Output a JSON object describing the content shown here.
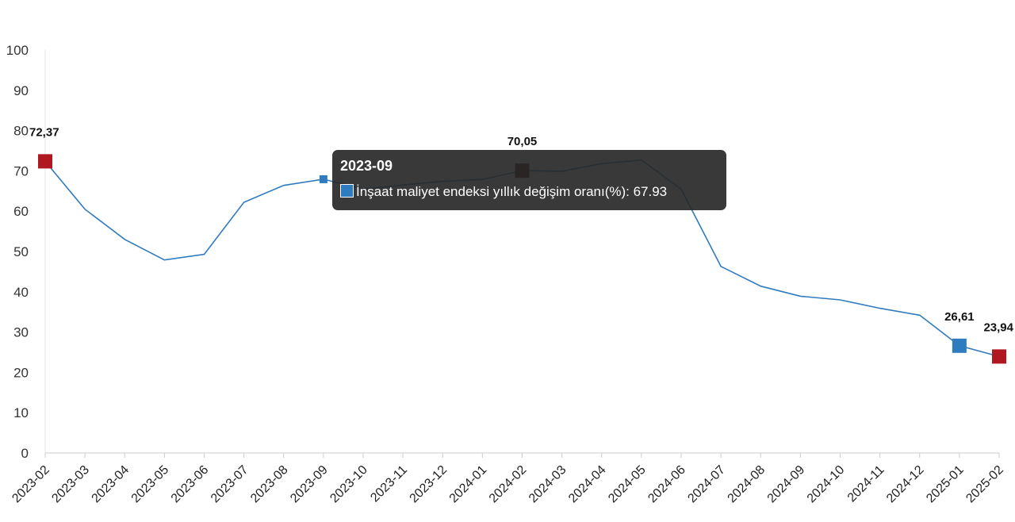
{
  "chart_data": {
    "type": "line",
    "series": [
      {
        "name": "İnşaat maliyet endeksi yıllık değişim oranı(%)",
        "color": "#2f7bbf",
        "x": [
          "2023-02",
          "2023-03",
          "2023-04",
          "2023-05",
          "2023-06",
          "2023-07",
          "2023-08",
          "2023-09",
          "2023-10",
          "2023-11",
          "2023-12",
          "2024-01",
          "2024-02",
          "2024-03",
          "2024-04",
          "2024-05",
          "2024-06",
          "2024-07",
          "2024-08",
          "2024-09",
          "2024-10",
          "2024-11",
          "2024-12",
          "2025-01",
          "2025-02"
        ],
        "values": [
          72.37,
          60.5,
          53.0,
          47.9,
          49.3,
          62.2,
          66.4,
          67.93,
          65.5,
          66.5,
          67.4,
          67.9,
          70.05,
          69.9,
          71.8,
          72.7,
          65.5,
          46.3,
          41.4,
          38.9,
          38.0,
          35.9,
          34.2,
          26.61,
          23.94
        ]
      }
    ],
    "ylim": [
      0,
      100
    ],
    "yticks": [
      "0",
      "10",
      "20",
      "30",
      "40",
      "50",
      "60",
      "70",
      "80",
      "90",
      "100"
    ],
    "highlights": [
      {
        "x": "2023-02",
        "label": "72,37",
        "color": "#b0171f"
      },
      {
        "x": "2024-02",
        "label": "70,05",
        "color": "#3a0408"
      },
      {
        "x": "2025-01",
        "label": "26,61",
        "color": "#2f7bbf"
      },
      {
        "x": "2025-02",
        "label": "23,94",
        "color": "#b0171f"
      }
    ],
    "grid": false,
    "legend": "none"
  },
  "tooltip": {
    "title": "2023-09",
    "series_name": "İnşaat maliyet endeksi yıllık değişim oranı(%)",
    "value_text": "67.93",
    "swatch_color": "#2f7bbf"
  }
}
